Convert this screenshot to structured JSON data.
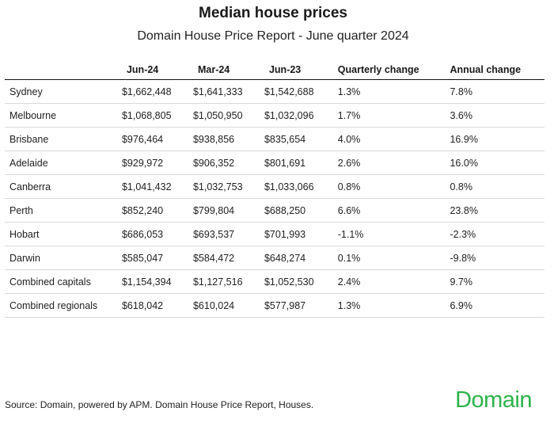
{
  "title": "Median house prices",
  "subtitle": "Domain House Price Report - June quarter 2024",
  "columns": [
    "",
    "Jun-24",
    "Mar-24",
    "Jun-23",
    "Quarterly change",
    "Annual change"
  ],
  "rows": [
    [
      "Sydney",
      "$1,662,448",
      "$1,641,333",
      "$1,542,688",
      "1.3%",
      "7.8%"
    ],
    [
      "Melbourne",
      "$1,068,805",
      "$1,050,950",
      "$1,032,096",
      "1.7%",
      "3.6%"
    ],
    [
      "Brisbane",
      "$976,464",
      "$938,856",
      "$835,654",
      "4.0%",
      "16.9%"
    ],
    [
      "Adelaide",
      "$929,972",
      "$906,352",
      "$801,691",
      "2.6%",
      "16.0%"
    ],
    [
      "Canberra",
      "$1,041,432",
      "$1,032,753",
      "$1,033,066",
      "0.8%",
      "0.8%"
    ],
    [
      "Perth",
      "$852,240",
      "$799,804",
      "$688,250",
      "6.6%",
      "23.8%"
    ],
    [
      "Hobart",
      "$686,053",
      "$693,537",
      "$701,993",
      "-1.1%",
      "-2.3%"
    ],
    [
      "Darwin",
      "$585,047",
      "$584,472",
      "$648,274",
      "0.1%",
      "-9.8%"
    ],
    [
      "Combined capitals",
      "$1,154,394",
      "$1,127,516",
      "$1,052,530",
      "2.4%",
      "9.7%"
    ],
    [
      "Combined regionals",
      "$618,042",
      "$610,024",
      "$577,987",
      "1.3%",
      "6.9%"
    ]
  ],
  "source": "Source: Domain, powered by APM. Domain House Price Report, Houses.",
  "logo_text": "Domain",
  "brand_color": "#2db34a"
}
